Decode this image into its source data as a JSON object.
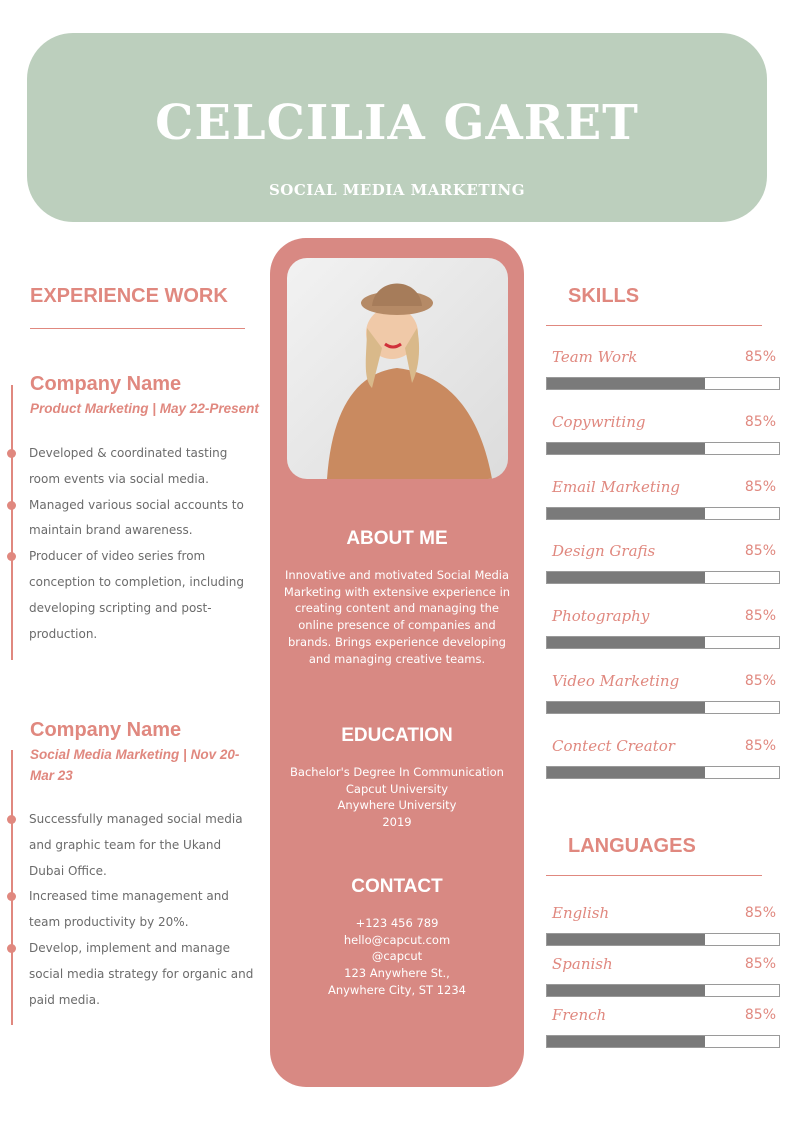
{
  "header": {
    "name": "CELCILIA GARET",
    "subtitle": "SOCIAL MEDIA MARKETING"
  },
  "colors": {
    "header_bg": "#bccfbd",
    "accent": "#d88983",
    "accent_text": "#e0887f",
    "bar": "#7a7a7a"
  },
  "experience": {
    "title": "EXPERIENCE WORK",
    "jobs": [
      {
        "company": "Company Name",
        "role": "Product Marketing | May 22-Present",
        "bullets": [
          "Developed & coordinated tasting room events via social media.",
          "Managed various social accounts to maintain brand awareness.",
          "Producer of video series from conception to completion, including developing scripting and post-production."
        ]
      },
      {
        "company": "Company Name",
        "role": "Social Media Marketing | Nov 20-Mar 23",
        "bullets": [
          "Successfully managed social media and graphic team for the Ukand Dubai Office.",
          "Increased time management and team productivity by 20%.",
          "Develop, implement and manage social media strategy for organic and paid media."
        ]
      }
    ]
  },
  "about": {
    "title": "ABOUT ME",
    "text": "Innovative and motivated Social Media Marketing with extensive experience in creating content and managing the online presence of companies and brands. Brings experience developing and managing creative teams."
  },
  "education": {
    "title": "EDUCATION",
    "lines": [
      "Bachelor's Degree In Communication",
      "Capcut University",
      "Anywhere University",
      "2019"
    ]
  },
  "contact": {
    "title": "CONTACT",
    "lines": [
      "+123  456 789",
      "hello@capcut.com",
      "@capcut",
      "123 Anywhere St.,",
      "Anywhere City, ST 1234"
    ]
  },
  "skills": {
    "title": "SKILLS",
    "items": [
      {
        "label": "Team Work",
        "percent": "85%",
        "fill": 0.68
      },
      {
        "label": "Copywriting",
        "percent": "85%",
        "fill": 0.68
      },
      {
        "label": "Email Marketing",
        "percent": "85%",
        "fill": 0.68
      },
      {
        "label": "Design Grafis",
        "percent": "85%",
        "fill": 0.68
      },
      {
        "label": "Photography",
        "percent": "85%",
        "fill": 0.68
      },
      {
        "label": "Video Marketing",
        "percent": "85%",
        "fill": 0.68
      },
      {
        "label": "Contect Creator",
        "percent": "85%",
        "fill": 0.68
      }
    ]
  },
  "languages": {
    "title": "LANGUAGES",
    "items": [
      {
        "label": "English",
        "percent": "85%",
        "fill": 0.68
      },
      {
        "label": "Spanish",
        "percent": "85%",
        "fill": 0.68
      },
      {
        "label": "French",
        "percent": "85%",
        "fill": 0.68
      }
    ]
  }
}
